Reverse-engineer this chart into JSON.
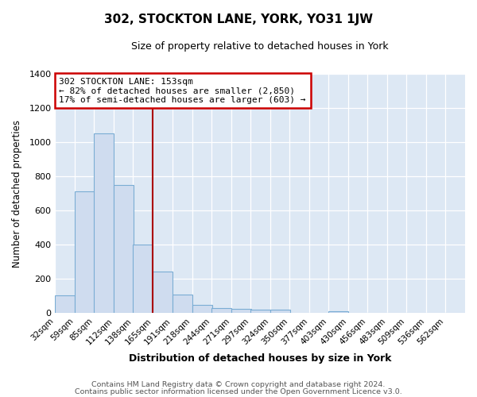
{
  "title": "302, STOCKTON LANE, YORK, YO31 1JW",
  "subtitle": "Size of property relative to detached houses in York",
  "xlabel": "Distribution of detached houses by size in York",
  "ylabel": "Number of detached properties",
  "bar_color": "#cfdcef",
  "bar_edge_color": "#7aadd4",
  "background_color": "#dde8f4",
  "vline_x": 165,
  "vline_color": "#aa0000",
  "categories": [
    "32sqm",
    "59sqm",
    "85sqm",
    "112sqm",
    "138sqm",
    "165sqm",
    "191sqm",
    "218sqm",
    "244sqm",
    "271sqm",
    "297sqm",
    "324sqm",
    "350sqm",
    "377sqm",
    "403sqm",
    "430sqm",
    "456sqm",
    "483sqm",
    "509sqm",
    "536sqm",
    "562sqm"
  ],
  "bin_edges": [
    32,
    59,
    85,
    112,
    138,
    165,
    191,
    218,
    244,
    271,
    297,
    324,
    350,
    377,
    403,
    430,
    456,
    483,
    509,
    536,
    562
  ],
  "bin_width": 27,
  "values": [
    105,
    715,
    1050,
    750,
    400,
    245,
    110,
    50,
    30,
    25,
    20,
    20,
    0,
    0,
    10,
    0,
    0,
    0,
    0,
    0,
    0
  ],
  "ylim": [
    0,
    1400
  ],
  "yticks": [
    0,
    200,
    400,
    600,
    800,
    1000,
    1200,
    1400
  ],
  "annotation_line1": "302 STOCKTON LANE: 153sqm",
  "annotation_line2": "← 82% of detached houses are smaller (2,850)",
  "annotation_line3": "17% of semi-detached houses are larger (603) →",
  "footer_line1": "Contains HM Land Registry data © Crown copyright and database right 2024.",
  "footer_line2": "Contains public sector information licensed under the Open Government Licence v3.0."
}
